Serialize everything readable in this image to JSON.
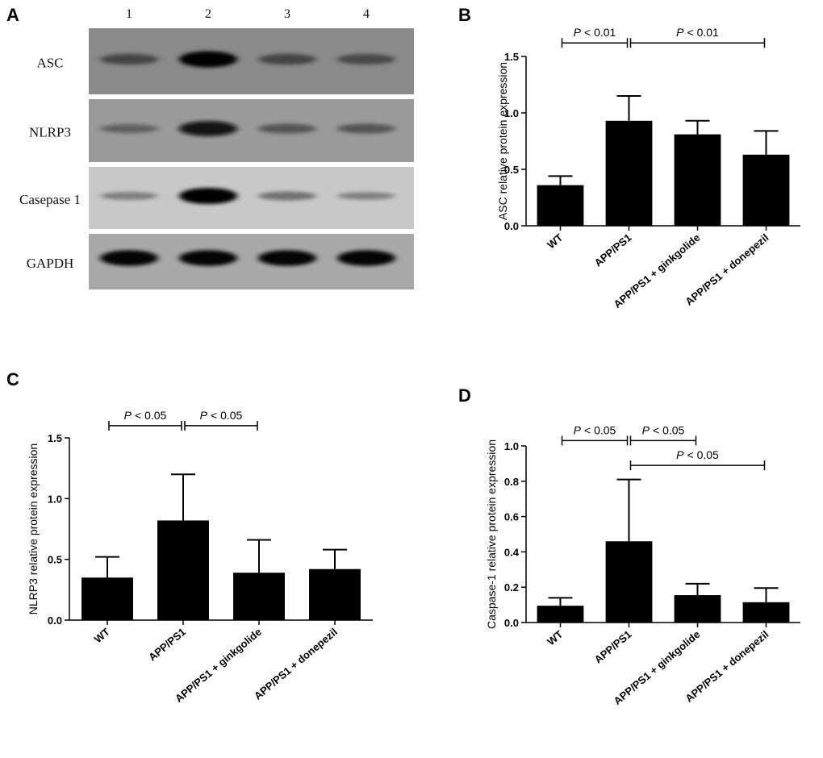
{
  "panels": {
    "A": "A",
    "B": "B",
    "C": "C",
    "D": "D"
  },
  "blot": {
    "lanes": [
      "1",
      "2",
      "3",
      "4"
    ],
    "rows": [
      {
        "label": "ASC",
        "intensity": [
          0.45,
          1.0,
          0.45,
          0.42
        ]
      },
      {
        "label": "NLRP3",
        "intensity": [
          0.25,
          0.9,
          0.35,
          0.35
        ]
      },
      {
        "label": "Casepase 1",
        "intensity": [
          0.15,
          1.0,
          0.25,
          0.12
        ]
      },
      {
        "label": "GAPDH",
        "intensity": [
          0.95,
          0.95,
          0.95,
          0.95
        ]
      }
    ]
  },
  "chart_data": [
    {
      "type": "bar",
      "panel": "B",
      "categories": [
        "WT",
        "APP/PS1",
        "APP/PS1 + ginkgolide",
        "APP/PS1 + donepezil"
      ],
      "values": [
        0.36,
        0.93,
        0.81,
        0.63
      ],
      "errors": [
        0.08,
        0.22,
        0.12,
        0.21
      ],
      "ylabel": "ASC relative protein expression",
      "ylim": [
        0,
        1.5
      ],
      "yticks": [
        "0.0",
        "0.5",
        "1.0",
        "1.5"
      ],
      "ytick_values": [
        0,
        0.5,
        1.0,
        1.5
      ],
      "significance": [
        {
          "from": 0,
          "to": 1,
          "level": 1.62,
          "label": "P",
          "op": "< 0.01"
        },
        {
          "from": 1,
          "to": 3,
          "level": 1.62,
          "label": "P",
          "op": "< 0.01"
        }
      ]
    },
    {
      "type": "bar",
      "panel": "C",
      "categories": [
        "WT",
        "APP/PS1",
        "APP/PS1 + ginkgolide",
        "APP/PS1 + donepezil"
      ],
      "values": [
        0.35,
        0.82,
        0.39,
        0.42
      ],
      "errors": [
        0.17,
        0.38,
        0.27,
        0.16
      ],
      "ylabel": "NLRP3 relative protein expression",
      "ylim": [
        0,
        1.5
      ],
      "yticks": [
        "0.0",
        "0.5",
        "1.0",
        "1.5"
      ],
      "ytick_values": [
        0,
        0.5,
        1.0,
        1.5
      ],
      "significance": [
        {
          "from": 0,
          "to": 1,
          "level": 1.6,
          "label": "P",
          "op": "< 0.05"
        },
        {
          "from": 1,
          "to": 2,
          "level": 1.6,
          "label": "P",
          "op": "< 0.05"
        }
      ]
    },
    {
      "type": "bar",
      "panel": "D",
      "categories": [
        "WT",
        "APP/PS1",
        "APP/PS1 + ginkgolide",
        "APP/PS1 + donepezil"
      ],
      "values": [
        0.095,
        0.46,
        0.155,
        0.115
      ],
      "errors": [
        0.045,
        0.35,
        0.065,
        0.08
      ],
      "ylabel": "Caspase-1 relative protein expression",
      "ylim": [
        0,
        1.0
      ],
      "yticks": [
        "0.0",
        "0.2",
        "0.4",
        "0.6",
        "0.8",
        "1.0"
      ],
      "ytick_values": [
        0,
        0.2,
        0.4,
        0.6,
        0.8,
        1.0
      ],
      "significance": [
        {
          "from": 0,
          "to": 1,
          "level": 1.03,
          "label": "P",
          "op": "< 0.05"
        },
        {
          "from": 1,
          "to": 2,
          "level": 1.03,
          "label": "P",
          "op": "< 0.05"
        },
        {
          "from": 1,
          "to": 3,
          "level": 0.89,
          "label": "P",
          "op": "< 0.05"
        }
      ]
    }
  ]
}
